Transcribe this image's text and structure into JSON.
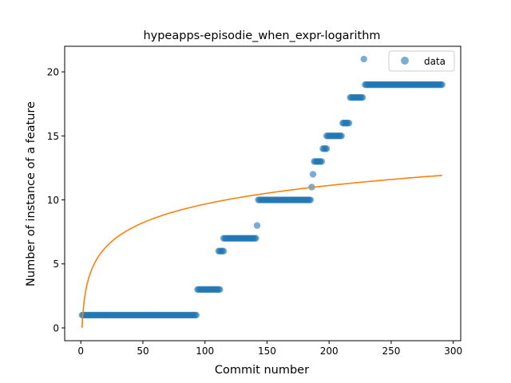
{
  "chart_data": {
    "type": "scatter",
    "title": "hypeapps-episodie_when_expr-logarithm",
    "xlabel": "Commit number",
    "ylabel": "Number of instance of a feature",
    "xlim": [
      -13,
      306
    ],
    "ylim": [
      -1,
      22
    ],
    "xticks": [
      0,
      50,
      100,
      150,
      200,
      250,
      300
    ],
    "yticks": [
      0,
      5,
      10,
      15,
      20
    ],
    "grid": false,
    "legend_position": "top-right",
    "series": [
      {
        "name": "data",
        "kind": "scatter",
        "color": "#1f77b4",
        "segments": [
          {
            "x_start": 1,
            "x_end": 93,
            "y": 1
          },
          {
            "x_start": 94,
            "x_end": 112,
            "y": 3
          },
          {
            "x_start": 111,
            "x_end": 115,
            "y": 6
          },
          {
            "x_start": 115,
            "x_end": 141,
            "y": 7
          },
          {
            "x_start": 142,
            "x_end": 142,
            "y": 8
          },
          {
            "x_start": 143,
            "x_end": 185,
            "y": 10
          },
          {
            "x_start": 186,
            "x_end": 186,
            "y": 11
          },
          {
            "x_start": 187,
            "x_end": 187,
            "y": 12
          },
          {
            "x_start": 188,
            "x_end": 194,
            "y": 13
          },
          {
            "x_start": 195,
            "x_end": 198,
            "y": 14
          },
          {
            "x_start": 198,
            "x_end": 210,
            "y": 15
          },
          {
            "x_start": 211,
            "x_end": 216,
            "y": 16
          },
          {
            "x_start": 217,
            "x_end": 227,
            "y": 18
          },
          {
            "x_start": 228,
            "x_end": 228,
            "y": 21
          },
          {
            "x_start": 229,
            "x_end": 291,
            "y": 19
          }
        ]
      },
      {
        "kind": "line",
        "color": "#ff7f0e",
        "model": "logarithm",
        "x_start": 1,
        "x_end": 291,
        "a": 2.1,
        "b": 0.0
      }
    ]
  }
}
